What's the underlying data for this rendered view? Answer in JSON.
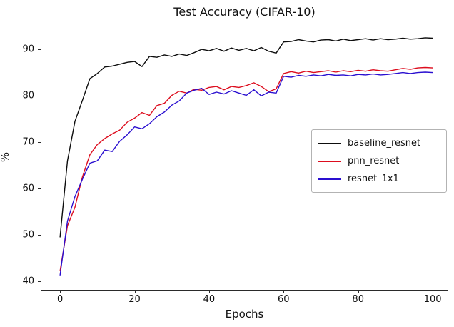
{
  "chart_data": {
    "type": "line",
    "title": "Test Accuracy (CIFAR-10)",
    "xlabel": "Epochs",
    "ylabel": "%",
    "xlim": [
      -5,
      104
    ],
    "ylim": [
      38.2,
      95.4
    ],
    "xticks": [
      0,
      20,
      40,
      60,
      80,
      100
    ],
    "yticks": [
      40,
      50,
      60,
      70,
      80,
      90
    ],
    "grid": false,
    "legend_position": "center right",
    "x": [
      0,
      2,
      4,
      6,
      8,
      10,
      12,
      14,
      16,
      18,
      20,
      22,
      24,
      26,
      28,
      30,
      32,
      34,
      36,
      38,
      40,
      42,
      44,
      46,
      48,
      50,
      52,
      54,
      56,
      58,
      60,
      62,
      64,
      66,
      68,
      70,
      72,
      74,
      76,
      78,
      80,
      82,
      84,
      86,
      88,
      90,
      92,
      94,
      96,
      98,
      100
    ],
    "series": [
      {
        "name": "baseline_resnet",
        "color": "#0d0d0d",
        "values": [
          49.5,
          66.0,
          74.5,
          79.0,
          83.7,
          84.8,
          86.2,
          86.4,
          86.8,
          87.2,
          87.4,
          86.3,
          88.5,
          88.3,
          88.8,
          88.5,
          89.0,
          88.7,
          89.3,
          90.0,
          89.7,
          90.2,
          89.6,
          90.3,
          89.8,
          90.2,
          89.7,
          90.4,
          89.6,
          89.2,
          91.6,
          91.7,
          92.1,
          91.8,
          91.6,
          92.0,
          92.1,
          91.8,
          92.2,
          91.9,
          92.1,
          92.3,
          92.0,
          92.3,
          92.1,
          92.2,
          92.4,
          92.2,
          92.3,
          92.5,
          92.4
        ]
      },
      {
        "name": "pnn_resnet",
        "color": "#dd0d1e",
        "values": [
          42.2,
          52.0,
          56.0,
          62.5,
          67.3,
          69.5,
          70.8,
          71.8,
          72.6,
          74.3,
          75.2,
          76.4,
          75.8,
          77.9,
          78.4,
          80.1,
          81.0,
          80.6,
          81.4,
          81.2,
          81.8,
          82.0,
          81.3,
          82.0,
          81.8,
          82.2,
          82.8,
          82.0,
          80.9,
          81.5,
          84.8,
          85.2,
          84.9,
          85.3,
          85.0,
          85.2,
          85.4,
          85.1,
          85.4,
          85.2,
          85.5,
          85.3,
          85.6,
          85.4,
          85.3,
          85.6,
          85.9,
          85.7,
          86.0,
          86.1,
          86.0
        ]
      },
      {
        "name": "resnet_1x1",
        "color": "#2a0fd0",
        "values": [
          41.3,
          53.0,
          58.3,
          62.0,
          65.5,
          66.0,
          68.3,
          68.0,
          70.2,
          71.6,
          73.3,
          72.9,
          74.0,
          75.5,
          76.5,
          78.0,
          78.9,
          80.6,
          81.2,
          81.6,
          80.3,
          80.8,
          80.4,
          81.1,
          80.6,
          80.1,
          81.3,
          80.0,
          80.8,
          80.6,
          84.2,
          84.0,
          84.4,
          84.2,
          84.5,
          84.3,
          84.6,
          84.4,
          84.5,
          84.3,
          84.6,
          84.5,
          84.7,
          84.5,
          84.6,
          84.8,
          85.0,
          84.8,
          85.0,
          85.1,
          85.0
        ]
      }
    ]
  }
}
